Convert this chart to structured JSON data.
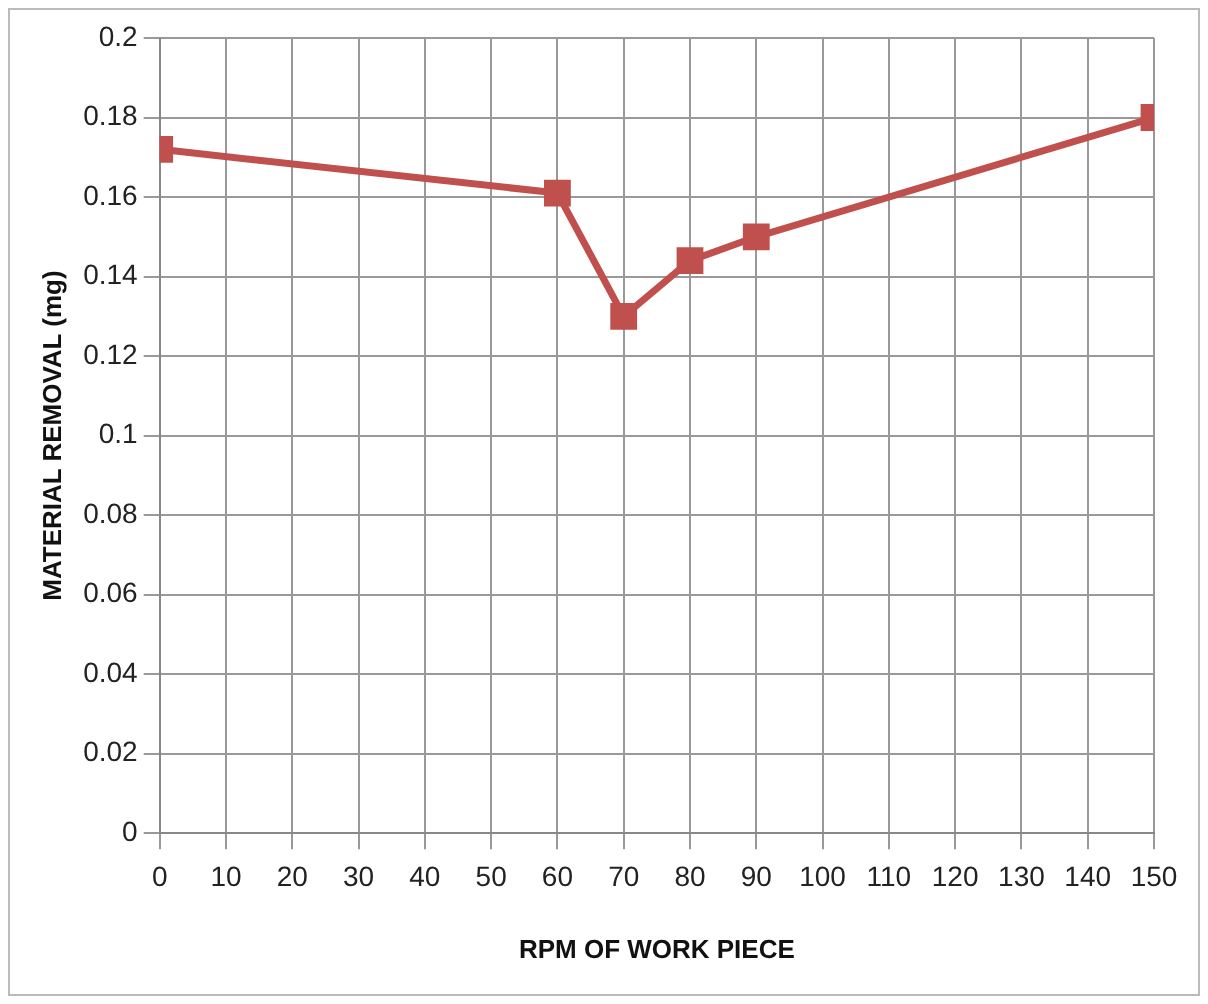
{
  "chart_data": {
    "type": "line",
    "xlabel": "RPM OF WORK PIECE",
    "ylabel": "MATERIAL REMOVAL (mg)",
    "x": [
      0,
      60,
      70,
      80,
      90,
      150
    ],
    "series": [
      {
        "color": "#c0504d",
        "values": [
          0.172,
          0.161,
          0.13,
          0.144,
          0.15,
          0.18
        ]
      }
    ],
    "xlim": [
      0,
      150
    ],
    "xticks": [
      0,
      10,
      20,
      30,
      40,
      50,
      60,
      70,
      80,
      90,
      100,
      110,
      120,
      130,
      140,
      150
    ],
    "ylim": [
      0,
      0.2
    ],
    "yticks": [
      0,
      0.02,
      0.04,
      0.06,
      0.08,
      0.1,
      0.12,
      0.14,
      0.16,
      0.18,
      0.2
    ],
    "grid": true,
    "marker": "square",
    "line_style": "solid",
    "legend": false
  }
}
